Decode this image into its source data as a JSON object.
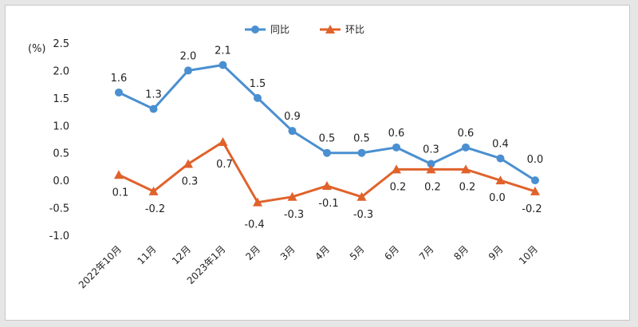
{
  "chart_data": {
    "type": "line",
    "unit_label": "(%)",
    "categories": [
      "2022年10月",
      "11月",
      "12月",
      "2023年1月",
      "2月",
      "3月",
      "4月",
      "5月",
      "6月",
      "7月",
      "8月",
      "9月",
      "10月"
    ],
    "ylim": [
      -1.0,
      2.5
    ],
    "yticks": [
      "2.5",
      "2.0",
      "1.5",
      "1.0",
      "0.5",
      "0.0",
      "-0.5",
      "-1.0"
    ],
    "grid": false,
    "legend_position": "top-center",
    "series": [
      {
        "name": "同比",
        "color": "#4a8fd0",
        "marker": "circle",
        "values": [
          1.6,
          1.3,
          2.0,
          2.1,
          1.5,
          0.9,
          0.5,
          0.5,
          0.6,
          0.3,
          0.6,
          0.4,
          0.0
        ],
        "labels": [
          "1.6",
          "1.3",
          "2.0",
          "2.1",
          "1.5",
          "0.9",
          "0.5",
          "0.5",
          "0.6",
          "0.3",
          "0.6",
          "0.4",
          "0.0"
        ]
      },
      {
        "name": "环比",
        "color": "#e0622b",
        "marker": "triangle",
        "values": [
          0.1,
          -0.2,
          0.3,
          0.7,
          -0.4,
          -0.3,
          -0.1,
          -0.3,
          0.2,
          0.2,
          0.2,
          0.0,
          -0.2
        ],
        "labels": [
          "0.1",
          "-0.2",
          "0.3",
          "0.7",
          "-0.4",
          "-0.3",
          "-0.1",
          "-0.3",
          "0.2",
          "0.2",
          "0.2",
          "0.0",
          "-0.2"
        ]
      }
    ]
  }
}
